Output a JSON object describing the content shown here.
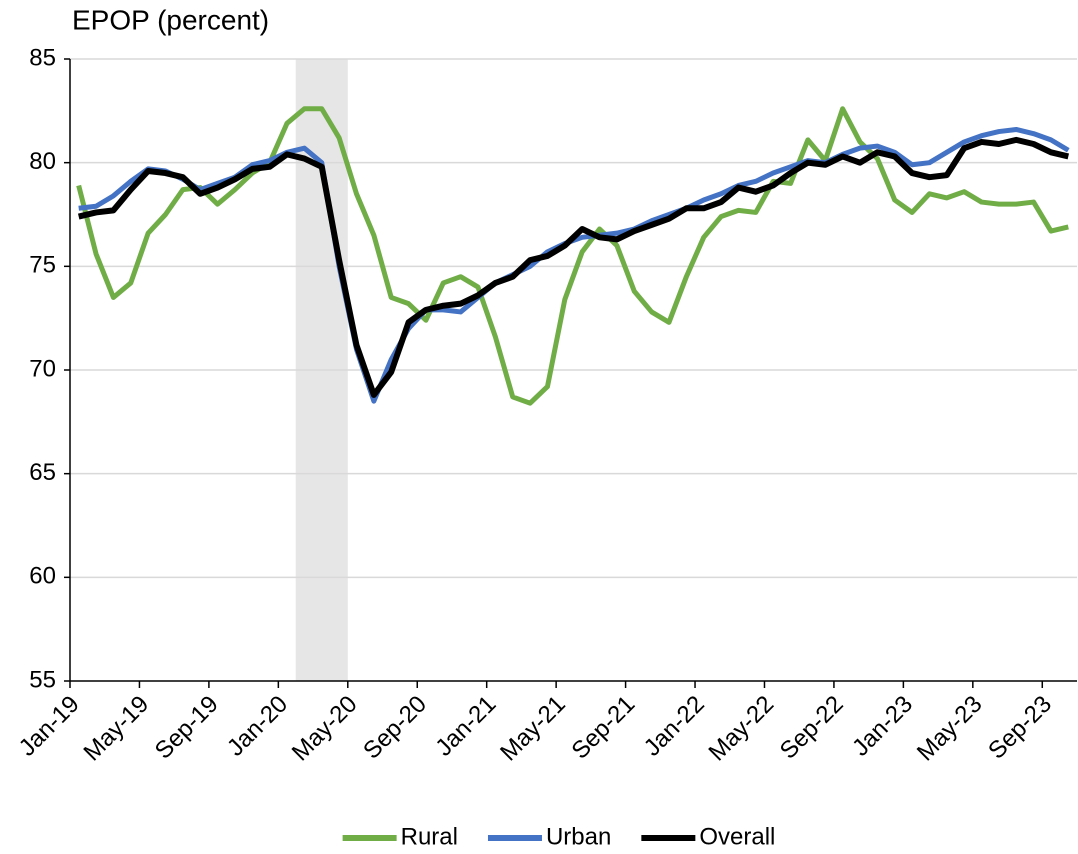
{
  "chart_data": {
    "type": "line",
    "title": "EPOP (percent)",
    "categories": [
      "Jan-19",
      null,
      null,
      null,
      "May-19",
      null,
      null,
      null,
      "Sep-19",
      null,
      null,
      null,
      "Jan-20",
      null,
      null,
      null,
      "May-20",
      null,
      null,
      null,
      "Sep-20",
      null,
      null,
      null,
      "Jan-21",
      null,
      null,
      null,
      "May-21",
      null,
      null,
      null,
      "Sep-21",
      null,
      null,
      null,
      "Jan-22",
      null,
      null,
      null,
      "May-22",
      null,
      null,
      null,
      "Sep-22",
      null,
      null,
      null,
      "Jan-23",
      null,
      null,
      null,
      "May-23",
      null,
      null,
      null,
      "Sep-23",
      null
    ],
    "series": [
      {
        "name": "Rural",
        "color": "#70ad47",
        "values": [
          78.9,
          75.6,
          73.5,
          74.2,
          76.6,
          77.5,
          78.7,
          78.8,
          78.0,
          78.7,
          79.5,
          80.0,
          81.9,
          82.6,
          82.6,
          81.2,
          78.5,
          76.5,
          73.5,
          73.2,
          72.4,
          74.2,
          74.5,
          74.0,
          71.6,
          68.7,
          68.4,
          69.2,
          73.4,
          75.7,
          76.8,
          76.0,
          73.8,
          72.8,
          72.3,
          74.5,
          76.4,
          77.4,
          77.7,
          77.6,
          79.1,
          79.0,
          81.1,
          80.1,
          82.6,
          81.0,
          80.2,
          78.2,
          77.6,
          78.5,
          78.3,
          78.6,
          78.1,
          78.0,
          78.0,
          78.1,
          76.7,
          76.9
        ]
      },
      {
        "name": "Urban",
        "color": "#4472c4",
        "values": [
          77.8,
          77.9,
          78.4,
          79.1,
          79.7,
          79.6,
          79.2,
          78.7,
          79.0,
          79.3,
          79.9,
          80.1,
          80.5,
          80.7,
          80.0,
          75.0,
          71.0,
          68.5,
          70.5,
          72.0,
          72.9,
          72.9,
          72.8,
          73.5,
          74.2,
          74.6,
          75.0,
          75.7,
          76.1,
          76.4,
          76.5,
          76.6,
          76.8,
          77.2,
          77.5,
          77.8,
          78.2,
          78.5,
          78.9,
          79.1,
          79.5,
          79.8,
          80.1,
          80.0,
          80.4,
          80.7,
          80.8,
          80.5,
          79.9,
          80.0,
          80.5,
          81.0,
          81.3,
          81.5,
          81.6,
          81.4,
          81.1,
          80.6
        ]
      },
      {
        "name": "Overall",
        "color": "#000000",
        "values": [
          77.4,
          77.6,
          77.7,
          78.7,
          79.6,
          79.5,
          79.3,
          78.5,
          78.8,
          79.2,
          79.7,
          79.8,
          80.4,
          80.2,
          79.8,
          75.3,
          71.2,
          68.8,
          69.9,
          72.3,
          72.9,
          73.1,
          73.2,
          73.6,
          74.2,
          74.5,
          75.3,
          75.5,
          76.0,
          76.8,
          76.4,
          76.3,
          76.7,
          77.0,
          77.3,
          77.8,
          77.8,
          78.1,
          78.8,
          78.6,
          78.9,
          79.5,
          80.0,
          79.9,
          80.3,
          80.0,
          80.5,
          80.3,
          79.5,
          79.3,
          79.4,
          80.7,
          81.0,
          80.9,
          81.1,
          80.9,
          80.5,
          80.3
        ]
      }
    ],
    "shaded": {
      "start": 13,
      "end": 15,
      "color": "#e7e6e6"
    },
    "ylim": [
      55,
      85
    ],
    "yticks": [
      55,
      60,
      65,
      70,
      75,
      80,
      85
    ],
    "grid": true,
    "legend": "bottom"
  }
}
